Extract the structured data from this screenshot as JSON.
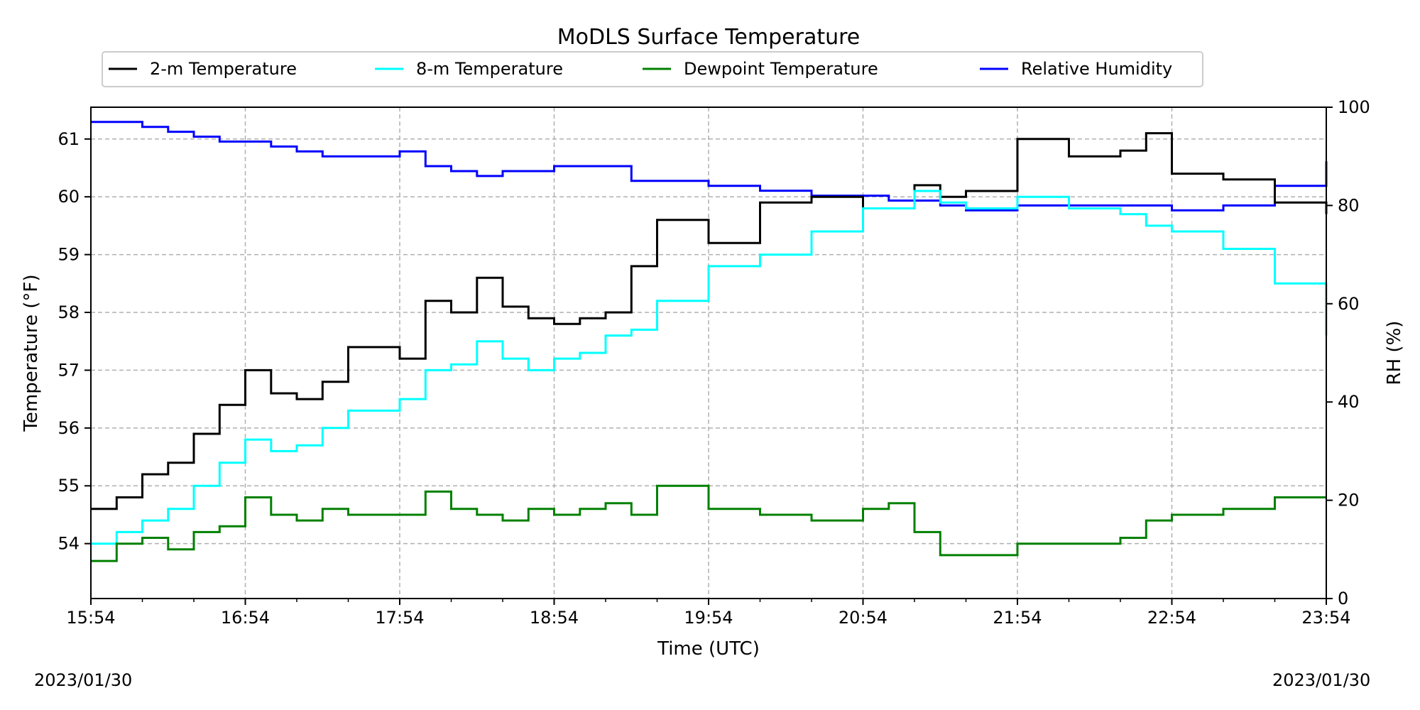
{
  "chart_data": {
    "type": "line",
    "title": "MoDLS Surface Temperature",
    "xlabel": "Time (UTC)",
    "ylabel": "Temperature ($^\\circ$F)",
    "ylabel_display": "Temperature (°F)",
    "y2label": "RH (%)",
    "x_ticks": [
      "15:54",
      "16:54",
      "17:54",
      "18:54",
      "19:54",
      "20:54",
      "21:54",
      "22:54",
      "23:54"
    ],
    "x_minutes_range": [
      0,
      480
    ],
    "ylim": [
      53.05,
      61.55
    ],
    "y_ticks": [
      54,
      55,
      56,
      57,
      58,
      59,
      60,
      61
    ],
    "y2lim": [
      0,
      100
    ],
    "y2_ticks": [
      0,
      20,
      40,
      60,
      80,
      100
    ],
    "grid": true,
    "legend_position": "top-center",
    "series": [
      {
        "name": "2-m Temperature",
        "axis": "left",
        "color": "#000000",
        "x_minutes": [
          0,
          10,
          20,
          30,
          40,
          50,
          60,
          70,
          80,
          90,
          100,
          120,
          130,
          140,
          150,
          160,
          170,
          180,
          190,
          200,
          210,
          220,
          240,
          260,
          280,
          300,
          320,
          330,
          340,
          360,
          380,
          400,
          410,
          420,
          440,
          460,
          480
        ],
        "values": [
          54.6,
          54.8,
          55.2,
          55.4,
          55.9,
          56.4,
          57.0,
          56.6,
          56.5,
          56.8,
          57.4,
          57.2,
          58.2,
          58.0,
          58.6,
          58.1,
          57.9,
          57.8,
          57.9,
          58.0,
          58.8,
          59.6,
          59.2,
          59.9,
          60.0,
          59.8,
          60.2,
          60.0,
          60.1,
          61.0,
          60.7,
          60.8,
          61.1,
          60.4,
          60.3,
          59.9,
          59.7
        ]
      },
      {
        "name": "8-m Temperature",
        "axis": "left",
        "color": "#00ffff",
        "x_minutes": [
          0,
          10,
          20,
          30,
          40,
          50,
          60,
          70,
          80,
          90,
          100,
          120,
          130,
          140,
          150,
          160,
          170,
          180,
          190,
          200,
          210,
          220,
          240,
          260,
          280,
          300,
          320,
          330,
          340,
          360,
          380,
          400,
          410,
          420,
          440,
          460,
          480
        ],
        "values": [
          54.0,
          54.2,
          54.4,
          54.6,
          55.0,
          55.4,
          55.8,
          55.6,
          55.7,
          56.0,
          56.3,
          56.5,
          57.0,
          57.1,
          57.5,
          57.2,
          57.0,
          57.2,
          57.3,
          57.6,
          57.7,
          58.2,
          58.8,
          59.0,
          59.4,
          59.8,
          60.1,
          59.9,
          59.8,
          60.0,
          59.8,
          59.7,
          59.5,
          59.4,
          59.1,
          58.5,
          57.6
        ]
      },
      {
        "name": "Dewpoint Temperature",
        "axis": "left",
        "color": "#008000",
        "x_minutes": [
          0,
          10,
          20,
          30,
          40,
          50,
          60,
          70,
          80,
          90,
          100,
          120,
          130,
          140,
          150,
          160,
          170,
          180,
          190,
          200,
          210,
          220,
          240,
          260,
          280,
          300,
          310,
          320,
          330,
          340,
          360,
          380,
          400,
          410,
          420,
          440,
          460,
          480
        ],
        "values": [
          53.7,
          54.0,
          54.1,
          53.9,
          54.2,
          54.3,
          54.8,
          54.5,
          54.4,
          54.6,
          54.5,
          54.5,
          54.9,
          54.6,
          54.5,
          54.4,
          54.6,
          54.5,
          54.6,
          54.7,
          54.5,
          55.0,
          54.6,
          54.5,
          54.4,
          54.6,
          54.7,
          54.2,
          53.8,
          53.8,
          54.0,
          54.0,
          54.1,
          54.4,
          54.5,
          54.6,
          54.8,
          54.8
        ]
      },
      {
        "name": "Relative Humidity",
        "axis": "right",
        "color": "#0000ff",
        "x_minutes": [
          0,
          10,
          20,
          30,
          40,
          50,
          60,
          70,
          80,
          90,
          100,
          120,
          130,
          140,
          150,
          160,
          170,
          180,
          190,
          200,
          210,
          220,
          240,
          260,
          280,
          300,
          310,
          320,
          330,
          340,
          360,
          380,
          400,
          410,
          420,
          440,
          460,
          480
        ],
        "values": [
          97,
          97,
          96,
          95,
          94,
          93,
          93,
          92,
          91,
          90,
          90,
          91,
          88,
          87,
          86,
          87,
          87,
          88,
          88,
          88,
          85,
          85,
          84,
          83,
          82,
          82,
          81,
          81,
          80,
          79,
          80,
          80,
          80,
          80,
          79,
          80,
          84,
          89
        ]
      }
    ]
  },
  "footer": {
    "date_left": "2023/01/30",
    "date_right": "2023/01/30"
  }
}
